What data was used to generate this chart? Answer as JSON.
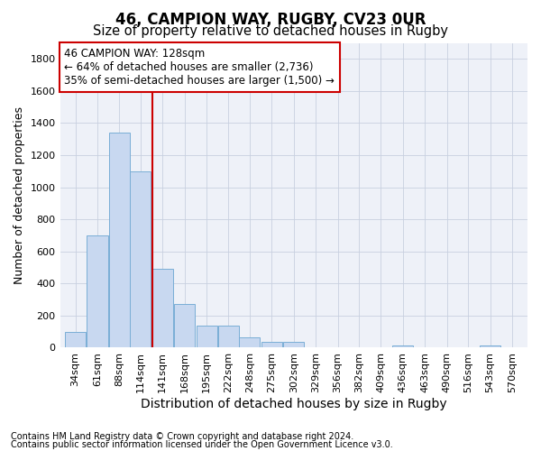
{
  "title1": "46, CAMPION WAY, RUGBY, CV23 0UR",
  "title2": "Size of property relative to detached houses in Rugby",
  "xlabel": "Distribution of detached houses by size in Rugby",
  "ylabel": "Number of detached properties",
  "bar_color": "#c8d8f0",
  "bar_edge_color": "#7aaed6",
  "categories": [
    "34sqm",
    "61sqm",
    "88sqm",
    "114sqm",
    "141sqm",
    "168sqm",
    "195sqm",
    "222sqm",
    "248sqm",
    "275sqm",
    "302sqm",
    "329sqm",
    "356sqm",
    "382sqm",
    "409sqm",
    "436sqm",
    "463sqm",
    "490sqm",
    "516sqm",
    "543sqm",
    "570sqm"
  ],
  "bin_starts": [
    34,
    61,
    88,
    114,
    141,
    168,
    195,
    222,
    248,
    275,
    302,
    329,
    356,
    382,
    409,
    436,
    463,
    490,
    516,
    543,
    570
  ],
  "values": [
    100,
    700,
    1340,
    1100,
    490,
    270,
    140,
    140,
    65,
    35,
    35,
    0,
    0,
    0,
    0,
    15,
    0,
    0,
    0,
    15,
    0
  ],
  "bin_width": 27,
  "property_size": 128,
  "vline_color": "#cc0000",
  "ylim": [
    0,
    1900
  ],
  "yticks": [
    0,
    200,
    400,
    600,
    800,
    1000,
    1200,
    1400,
    1600,
    1800
  ],
  "annotation_line1": "46 CAMPION WAY: 128sqm",
  "annotation_line2": "← 64% of detached houses are smaller (2,736)",
  "annotation_line3": "35% of semi-detached houses are larger (1,500) →",
  "annotation_box_color": "#ffffff",
  "annotation_border_color": "#cc0000",
  "grid_color": "#c8d0e0",
  "background_color": "#ffffff",
  "plot_bg_color": "#eef1f8",
  "footer1": "Contains HM Land Registry data © Crown copyright and database right 2024.",
  "footer2": "Contains public sector information licensed under the Open Government Licence v3.0.",
  "title1_fontsize": 12,
  "title2_fontsize": 10.5,
  "xlabel_fontsize": 10,
  "ylabel_fontsize": 9,
  "tick_fontsize": 8,
  "annotation_fontsize": 8.5,
  "footer_fontsize": 7
}
